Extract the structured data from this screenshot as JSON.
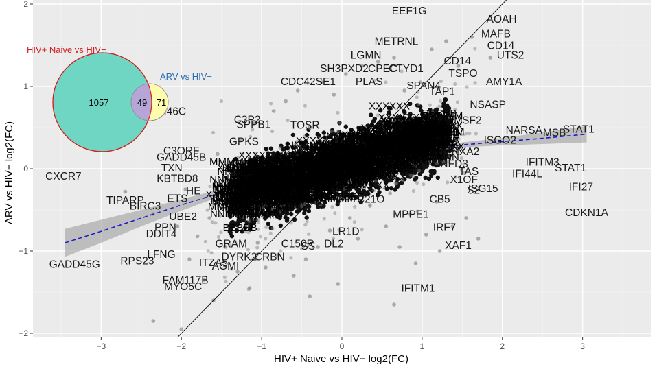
{
  "chart_data": {
    "type": "scatter",
    "title": "",
    "xlabel": "HIV+ Naive vs HIV− log2(FC)",
    "ylabel": "ARV vs HIV− log2(FC)",
    "xlim": [
      -3.85,
      3.85
    ],
    "ylim": [
      -2.05,
      2.05
    ],
    "xticks": [
      -3,
      -2,
      -1,
      0,
      1,
      2,
      3
    ],
    "yticks": [
      -2,
      -1,
      0,
      1,
      2
    ],
    "xtick_labels": [
      "−3",
      "−2",
      "−1",
      "0",
      "1",
      "2",
      "3"
    ],
    "ytick_labels": [
      "−2",
      "−1",
      "0",
      "1",
      "2"
    ],
    "grid": true,
    "background": "#ebebeb",
    "identity_line": {
      "x1": -2.1,
      "y1": -2.1,
      "x2": 2.1,
      "y2": 2.1,
      "color": "#000000"
    },
    "trend_line": {
      "style": "dashed",
      "color": "#1a1acc",
      "band_color": "#9e9e9e",
      "points": [
        {
          "x": -3.45,
          "y": -0.9,
          "se": 0.17
        },
        {
          "x": -3.0,
          "y": -0.76,
          "se": 0.14
        },
        {
          "x": -2.5,
          "y": -0.6,
          "se": 0.1
        },
        {
          "x": -2.0,
          "y": -0.44,
          "se": 0.07
        },
        {
          "x": -1.5,
          "y": -0.29,
          "se": 0.04
        },
        {
          "x": -1.0,
          "y": -0.15,
          "se": 0.02
        },
        {
          "x": -0.5,
          "y": -0.05,
          "se": 0.012
        },
        {
          "x": 0.0,
          "y": 0.04,
          "se": 0.01
        },
        {
          "x": 0.5,
          "y": 0.14,
          "se": 0.012
        },
        {
          "x": 1.0,
          "y": 0.22,
          "se": 0.02
        },
        {
          "x": 1.5,
          "y": 0.29,
          "se": 0.03
        },
        {
          "x": 2.0,
          "y": 0.33,
          "se": 0.045
        },
        {
          "x": 2.5,
          "y": 0.37,
          "se": 0.07
        },
        {
          "x": 3.05,
          "y": 0.42,
          "se": 0.1
        }
      ]
    },
    "scatter_points": [
      {
        "x": -2.7,
        "y": -0.28
      },
      {
        "x": -2.35,
        "y": -0.55
      },
      {
        "x": -2.05,
        "y": -0.7
      },
      {
        "x": -1.95,
        "y": -0.25
      },
      {
        "x": -1.9,
        "y": -1.1
      },
      {
        "x": -1.8,
        "y": -0.82
      },
      {
        "x": -1.72,
        "y": -1.35
      },
      {
        "x": -1.65,
        "y": -0.6
      },
      {
        "x": -1.6,
        "y": -1.6
      },
      {
        "x": -1.55,
        "y": 0.18
      },
      {
        "x": -1.45,
        "y": -0.95
      },
      {
        "x": -1.4,
        "y": -0.4
      },
      {
        "x": -1.3,
        "y": -1.25
      },
      {
        "x": -1.25,
        "y": 0.35
      },
      {
        "x": -1.2,
        "y": -0.7
      },
      {
        "x": -1.15,
        "y": -1.45
      },
      {
        "x": -1.1,
        "y": 0.55
      },
      {
        "x": -1.05,
        "y": -0.9
      },
      {
        "x": -0.95,
        "y": -1.2
      },
      {
        "x": -0.85,
        "y": 0.7
      },
      {
        "x": -0.8,
        "y": -1.05
      },
      {
        "x": -0.7,
        "y": 0.82
      },
      {
        "x": -0.6,
        "y": -1.3
      },
      {
        "x": -0.55,
        "y": 0.95
      },
      {
        "x": -0.45,
        "y": -1.1
      },
      {
        "x": -0.4,
        "y": 0.5
      },
      {
        "x": -0.3,
        "y": -0.95
      },
      {
        "x": -0.25,
        "y": 1.05
      },
      {
        "x": -0.15,
        "y": -0.75
      },
      {
        "x": -0.1,
        "y": 0.9
      },
      {
        "x": -0.05,
        "y": -1.4
      },
      {
        "x": 0.05,
        "y": 1.15
      },
      {
        "x": 0.1,
        "y": -0.6
      },
      {
        "x": 0.2,
        "y": -0.85
      },
      {
        "x": 0.25,
        "y": 1.25
      },
      {
        "x": 0.35,
        "y": -0.45
      },
      {
        "x": 0.45,
        "y": 1.3
      },
      {
        "x": 0.55,
        "y": -0.7
      },
      {
        "x": 0.6,
        "y": -0.3
      },
      {
        "x": 0.65,
        "y": 1.35
      },
      {
        "x": 0.72,
        "y": -0.95
      },
      {
        "x": 0.78,
        "y": 0.95
      },
      {
        "x": 0.85,
        "y": -0.55
      },
      {
        "x": 0.92,
        "y": -1.15
      },
      {
        "x": 0.98,
        "y": 1.05
      },
      {
        "x": 1.05,
        "y": -0.8
      },
      {
        "x": 1.12,
        "y": 1.45
      },
      {
        "x": 1.18,
        "y": -0.4
      },
      {
        "x": 1.22,
        "y": -1.0
      },
      {
        "x": 1.3,
        "y": 1.55
      },
      {
        "x": 1.38,
        "y": -0.7
      },
      {
        "x": 1.45,
        "y": 1.25
      },
      {
        "x": 1.55,
        "y": -0.6
      },
      {
        "x": 1.62,
        "y": 1.6
      },
      {
        "x": 1.7,
        "y": -0.85
      },
      {
        "x": 1.85,
        "y": 1.35
      },
      {
        "x": 0.65,
        "y": -1.65
      },
      {
        "x": -0.4,
        "y": -1.55
      },
      {
        "x": -2.35,
        "y": -1.85
      },
      {
        "x": -2.0,
        "y": -1.95
      }
    ],
    "dense_cloud": {
      "x_range": [
        -1.4,
        1.35
      ],
      "slope": 0.29,
      "intercept": 0.03
    },
    "gene_labels": [
      {
        "label": "EEF1G",
        "x": 0.84,
        "y": 1.91
      },
      {
        "label": "AOAH",
        "x": 1.99,
        "y": 1.81
      },
      {
        "label": "MAFB",
        "x": 1.92,
        "y": 1.63
      },
      {
        "label": "METRNL",
        "x": 0.68,
        "y": 1.54
      },
      {
        "label": "CD14",
        "x": 1.98,
        "y": 1.49
      },
      {
        "label": "UTS2",
        "x": 2.1,
        "y": 1.37
      },
      {
        "label": "LGMN",
        "x": 0.3,
        "y": 1.37
      },
      {
        "label": "CD14",
        "x": 1.44,
        "y": 1.3
      },
      {
        "label": "SH3PXD2",
        "x": 0.03,
        "y": 1.21
      },
      {
        "label": "CPEC",
        "x": 0.51,
        "y": 1.21
      },
      {
        "label": "CTYD1",
        "x": 0.8,
        "y": 1.21
      },
      {
        "label": "TSPO",
        "x": 1.51,
        "y": 1.15
      },
      {
        "label": "AMY1A",
        "x": 2.02,
        "y": 1.05
      },
      {
        "label": "CDC42SE1",
        "x": -0.42,
        "y": 1.05
      },
      {
        "label": "PLAS",
        "x": 0.34,
        "y": 1.05
      },
      {
        "label": "SPAN4",
        "x": 1.02,
        "y": 1.0
      },
      {
        "label": "TAP1",
        "x": 1.25,
        "y": 0.93
      },
      {
        "label": "FAM46C",
        "x": -2.2,
        "y": 0.69
      },
      {
        "label": "NSASP",
        "x": 1.82,
        "y": 0.77
      },
      {
        "label": "C3P2",
        "x": -1.18,
        "y": 0.59
      },
      {
        "label": "SPPB1",
        "x": -1.1,
        "y": 0.53
      },
      {
        "label": "TOSR",
        "x": -0.46,
        "y": 0.52
      },
      {
        "label": "SF2",
        "x": 1.62,
        "y": 0.58
      },
      {
        "label": "NARSA",
        "x": 2.27,
        "y": 0.46
      },
      {
        "label": "MSB",
        "x": 2.65,
        "y": 0.43
      },
      {
        "label": "STAT1",
        "x": 2.95,
        "y": 0.47
      },
      {
        "label": "ISGO2",
        "x": 1.97,
        "y": 0.34
      },
      {
        "label": "GPKS",
        "x": -1.22,
        "y": 0.32
      },
      {
        "label": "NXA2",
        "x": 1.54,
        "y": 0.2
      },
      {
        "label": "C3ORF",
        "x": -2.0,
        "y": 0.21
      },
      {
        "label": "GADD45B",
        "x": -2.0,
        "y": 0.13
      },
      {
        "label": "IFITM3",
        "x": 2.5,
        "y": 0.07
      },
      {
        "label": "NFD3",
        "x": 1.4,
        "y": 0.05
      },
      {
        "label": "STAT1",
        "x": 2.85,
        "y": 0.0
      },
      {
        "label": "CXCR7",
        "x": -3.47,
        "y": -0.1
      },
      {
        "label": "TXN",
        "x": -2.12,
        "y": 0.0
      },
      {
        "label": "IFI44L",
        "x": 2.31,
        "y": -0.07
      },
      {
        "label": "KBTBD8",
        "x": -2.05,
        "y": -0.13
      },
      {
        "label": "TAS",
        "x": 1.58,
        "y": -0.04
      },
      {
        "label": "X1OF",
        "x": 1.52,
        "y": -0.14
      },
      {
        "label": "IFI27",
        "x": 2.98,
        "y": -0.23
      },
      {
        "label": "ISG15",
        "x": 1.76,
        "y": -0.25
      },
      {
        "label": "HE",
        "x": -1.85,
        "y": -0.28
      },
      {
        "label": "S2",
        "x": 1.64,
        "y": -0.27
      },
      {
        "label": "TIPARP",
        "x": -2.7,
        "y": -0.39
      },
      {
        "label": "ETS",
        "x": -2.05,
        "y": -0.37
      },
      {
        "label": "BIRC3",
        "x": -2.45,
        "y": -0.46
      },
      {
        "label": "CB5",
        "x": 1.22,
        "y": -0.38
      },
      {
        "label": "C21O",
        "x": 0.36,
        "y": -0.38
      },
      {
        "label": "CDKN1A",
        "x": 3.05,
        "y": -0.54
      },
      {
        "label": "MPPE1",
        "x": 0.86,
        "y": -0.56
      },
      {
        "label": "UBE2",
        "x": -1.98,
        "y": -0.59
      },
      {
        "label": "LR1D",
        "x": 0.05,
        "y": -0.77
      },
      {
        "label": "PPN",
        "x": -2.2,
        "y": -0.72
      },
      {
        "label": "DDIT4",
        "x": -2.25,
        "y": -0.8
      },
      {
        "label": "IRF7",
        "x": 1.28,
        "y": -0.72
      },
      {
        "label": "GRAM",
        "x": -1.38,
        "y": -0.92
      },
      {
        "label": "C150R",
        "x": -0.55,
        "y": -0.92
      },
      {
        "label": "DL2",
        "x": -0.1,
        "y": -0.92
      },
      {
        "label": "SS",
        "x": -0.42,
        "y": -0.95
      },
      {
        "label": "DYRK2",
        "x": -1.28,
        "y": -1.08
      },
      {
        "label": "CRBN",
        "x": -0.9,
        "y": -1.08
      },
      {
        "label": "XAF1",
        "x": 1.45,
        "y": -0.94
      },
      {
        "label": "LFNG",
        "x": -2.25,
        "y": -1.05
      },
      {
        "label": "RPS23",
        "x": -2.55,
        "y": -1.13
      },
      {
        "label": "ITZA5",
        "x": -1.6,
        "y": -1.15
      },
      {
        "label": "AGMI",
        "x": -1.45,
        "y": -1.19
      },
      {
        "label": "GADD45G",
        "x": -3.33,
        "y": -1.17
      },
      {
        "label": "FAM117B",
        "x": -1.95,
        "y": -1.36
      },
      {
        "label": "MYO5C",
        "x": -1.98,
        "y": -1.44
      },
      {
        "label": "IFITM1",
        "x": 0.95,
        "y": -1.46
      }
    ]
  },
  "venn": {
    "set_a": {
      "label": "HIV+ Naive vs HIV−",
      "color": "#d42020",
      "fill": "#6fd6c3"
    },
    "set_b": {
      "label": "ARV vs HIV−",
      "color": "#2d6db3",
      "fill": "#fffdad"
    },
    "intersection_fill": "#b6a6d8",
    "only_a_count": "1057",
    "both_count": "49",
    "only_b_count": "71"
  }
}
